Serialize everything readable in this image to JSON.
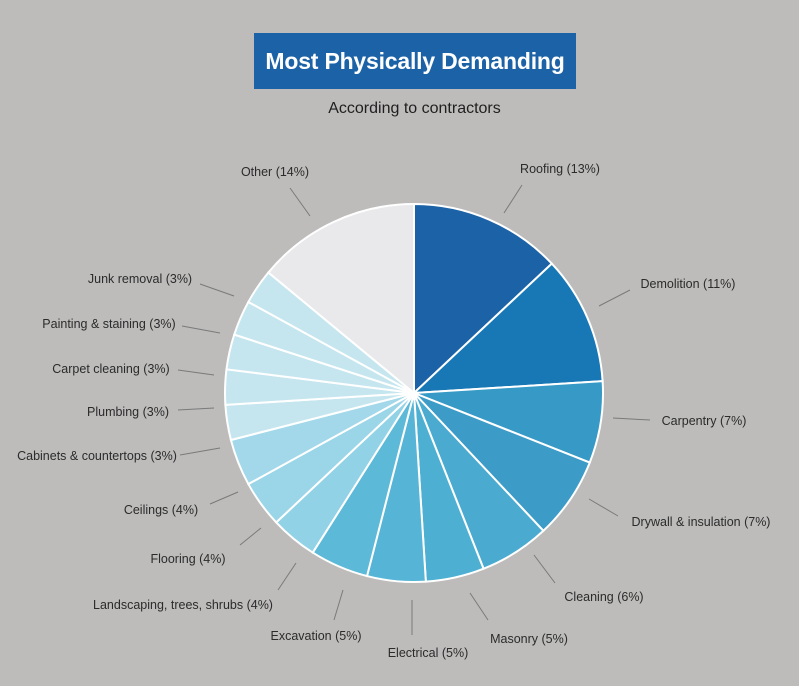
{
  "chart_data": {
    "type": "pie",
    "title": "Most Physically Demanding",
    "subtitle": "According to contractors",
    "slices": [
      {
        "label": "Roofing (13%)",
        "value": 13,
        "color": "#1c62a6"
      },
      {
        "label": "Demolition (11%)",
        "value": 11,
        "color": "#1877b5"
      },
      {
        "label": "Carpentry (7%)",
        "value": 7,
        "color": "#3799c6"
      },
      {
        "label": "Drywall & insulation (7%)",
        "value": 7,
        "color": "#3c9bc7"
      },
      {
        "label": "Cleaning (6%)",
        "value": 6,
        "color": "#4aaad0"
      },
      {
        "label": "Masonry (5%)",
        "value": 5,
        "color": "#4db0d3"
      },
      {
        "label": "Electrical (5%)",
        "value": 5,
        "color": "#56b5d6"
      },
      {
        "label": "Excavation (5%)",
        "value": 5,
        "color": "#5cb9d8"
      },
      {
        "label": "Landscaping, trees, shrubs (4%)",
        "value": 4,
        "color": "#92d2e6"
      },
      {
        "label": "Flooring (4%)",
        "value": 4,
        "color": "#9ad5e8"
      },
      {
        "label": "Ceilings (4%)",
        "value": 4,
        "color": "#a2d8ea"
      },
      {
        "label": "Cabinets & countertops (3%)",
        "value": 3,
        "color": "#c6e6ef"
      },
      {
        "label": "Plumbing (3%)",
        "value": 3,
        "color": "#c6e6ef"
      },
      {
        "label": "Carpet cleaning (3%)",
        "value": 3,
        "color": "#c6e6ef"
      },
      {
        "label": "Painting & staining (3%)",
        "value": 3,
        "color": "#c6e6ef"
      },
      {
        "label": "Junk removal (3%)",
        "value": 3,
        "color": "#c6e6ef"
      },
      {
        "label": "Other (14%)",
        "value": 14,
        "color": "#e9e9ec"
      }
    ]
  }
}
